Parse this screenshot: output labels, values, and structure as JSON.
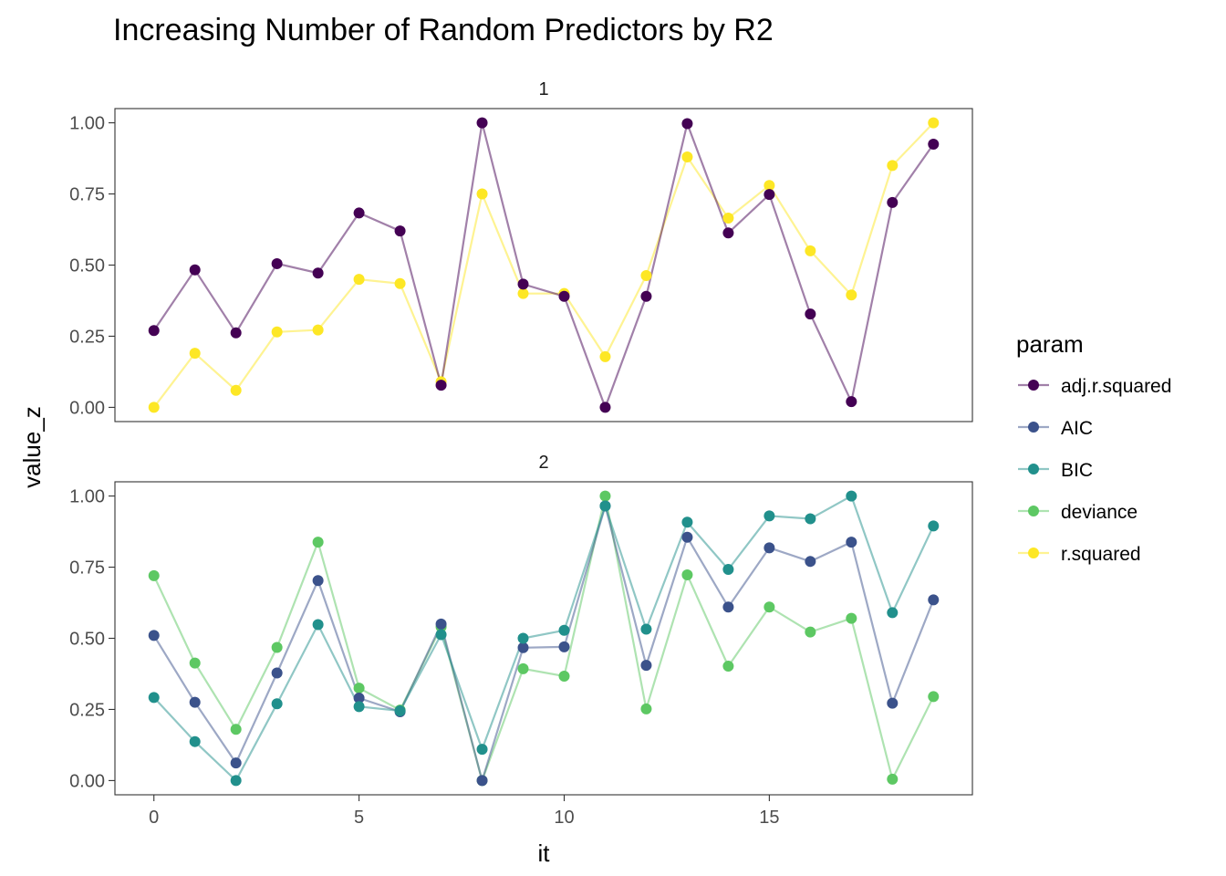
{
  "chart_data": {
    "type": "line",
    "title": "Increasing Number of Random Predictors by R2",
    "xlabel": "it",
    "ylabel": "value_z",
    "x": [
      0,
      1,
      2,
      3,
      4,
      5,
      6,
      7,
      8,
      9,
      10,
      11,
      12,
      13,
      14,
      15,
      16,
      17,
      18,
      19
    ],
    "xlim": [
      -0.95,
      19.95
    ],
    "ylim": [
      -0.05,
      1.05
    ],
    "x_ticks": [
      "0",
      "5",
      "10",
      "15"
    ],
    "x_tick_values": [
      0,
      5,
      10,
      15
    ],
    "y_ticks": [
      "0.00",
      "0.25",
      "0.50",
      "0.75",
      "1.00"
    ],
    "y_tick_values": [
      0,
      0.25,
      0.5,
      0.75,
      1.0
    ],
    "legend": {
      "title": "param",
      "position": "right",
      "items": [
        {
          "label": "adj.r.squared",
          "color": "#440154"
        },
        {
          "label": "AIC",
          "color": "#3B528B"
        },
        {
          "label": "BIC",
          "color": "#21908C"
        },
        {
          "label": "deviance",
          "color": "#5DC863"
        },
        {
          "label": "r.squared",
          "color": "#FDE725"
        }
      ]
    },
    "panels": [
      {
        "strip": "1",
        "series": [
          {
            "name": "r.squared",
            "color": "#FDE725",
            "values": [
              0.0,
              0.19,
              0.06,
              0.265,
              0.272,
              0.45,
              0.435,
              0.09,
              0.75,
              0.4,
              0.4,
              0.178,
              0.463,
              0.88,
              0.665,
              0.78,
              0.55,
              0.395,
              0.85,
              1.0
            ]
          },
          {
            "name": "adj.r.squared",
            "color": "#440154",
            "values": [
              0.27,
              0.483,
              0.262,
              0.505,
              0.472,
              0.683,
              0.62,
              0.078,
              1.0,
              0.433,
              0.39,
              0.0,
              0.39,
              0.997,
              0.613,
              0.748,
              0.328,
              0.02,
              0.72,
              0.925
            ]
          }
        ]
      },
      {
        "strip": "2",
        "series": [
          {
            "name": "deviance",
            "color": "#5DC863",
            "values": [
              0.72,
              0.413,
              0.18,
              0.468,
              0.838,
              0.325,
              0.248,
              0.54,
              0.0,
              0.393,
              0.367,
              1.0,
              0.252,
              0.723,
              0.402,
              0.61,
              0.522,
              0.57,
              0.005,
              0.295
            ]
          },
          {
            "name": "AIC",
            "color": "#3B528B",
            "values": [
              0.51,
              0.275,
              0.062,
              0.378,
              0.703,
              0.29,
              0.242,
              0.55,
              0.0,
              0.467,
              0.47,
              0.965,
              0.405,
              0.855,
              0.61,
              0.818,
              0.77,
              0.838,
              0.272,
              0.635
            ]
          },
          {
            "name": "BIC",
            "color": "#21908C",
            "values": [
              0.292,
              0.137,
              0.0,
              0.27,
              0.548,
              0.26,
              0.245,
              0.513,
              0.11,
              0.5,
              0.528,
              0.965,
              0.532,
              0.908,
              0.742,
              0.93,
              0.92,
              1.0,
              0.59,
              0.895
            ]
          }
        ]
      }
    ]
  }
}
